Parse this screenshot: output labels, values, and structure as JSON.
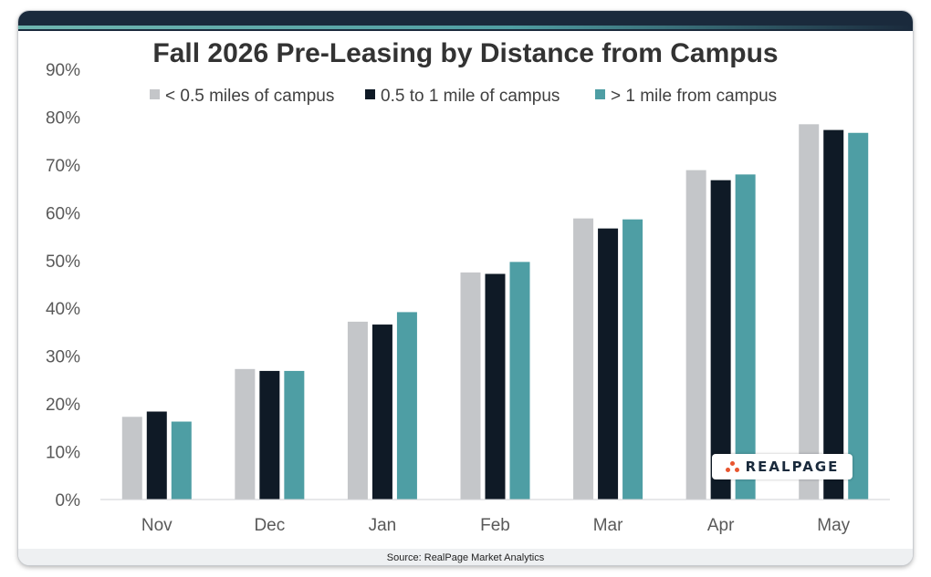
{
  "chart_data": {
    "type": "bar",
    "title": "Fall 2026 Pre-Leasing by Distance from Campus",
    "categories": [
      "Nov",
      "Dec",
      "Jan",
      "Feb",
      "Mar",
      "Apr",
      "May"
    ],
    "series": [
      {
        "name": "< 0.5 miles of campus",
        "color": "#c4c6c9",
        "values": [
          17.3,
          27.3,
          37.2,
          47.5,
          58.8,
          68.9,
          78.5
        ]
      },
      {
        "name": "0.5 to 1 mile of campus",
        "color": "#0f1a26",
        "values": [
          18.4,
          26.9,
          36.6,
          47.2,
          56.7,
          66.8,
          77.3
        ]
      },
      {
        "name": "> 1 mile from campus",
        "color": "#4e9ea4",
        "values": [
          16.3,
          26.9,
          39.2,
          49.7,
          58.6,
          68.0,
          76.7
        ]
      }
    ],
    "ylim": [
      0,
      90
    ],
    "yticks": [
      0,
      10,
      20,
      30,
      40,
      50,
      60,
      70,
      80,
      90
    ],
    "ytick_format": "%",
    "legend_position": "top-center",
    "grid": false
  },
  "source": "Source: RealPage Market Analytics",
  "logo": {
    "text": "REALPAGE",
    "color": "#e8552f"
  }
}
